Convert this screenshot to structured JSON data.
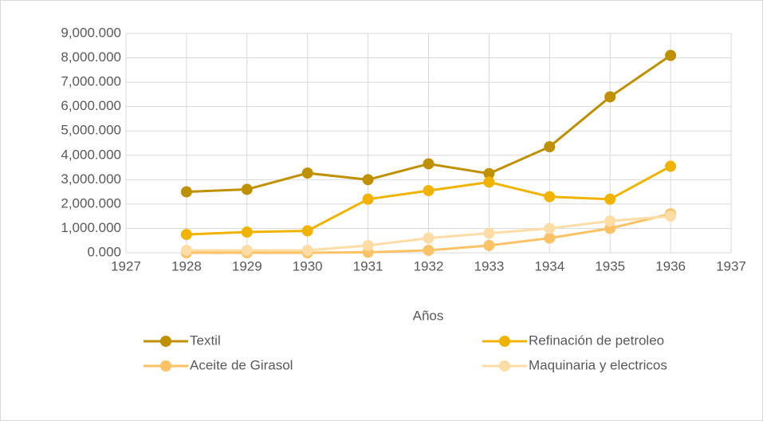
{
  "chart_data": {
    "type": "line",
    "x_label": "Años",
    "x": [
      1928,
      1929,
      1930,
      1931,
      1932,
      1933,
      1934,
      1935,
      1936
    ],
    "xlim": [
      1927,
      1937
    ],
    "xticks": [
      1927,
      1928,
      1929,
      1930,
      1931,
      1932,
      1933,
      1934,
      1935,
      1936,
      1937
    ],
    "ylim": [
      0,
      9000
    ],
    "yticks": [
      {
        "value": 0,
        "label": "0.000"
      },
      {
        "value": 1000,
        "label": "1,000.000"
      },
      {
        "value": 2000,
        "label": "2,000.000"
      },
      {
        "value": 3000,
        "label": "3,000.000"
      },
      {
        "value": 4000,
        "label": "4,000.000"
      },
      {
        "value": 5000,
        "label": "5,000.000"
      },
      {
        "value": 6000,
        "label": "6,000.000"
      },
      {
        "value": 7000,
        "label": "7,000.000"
      },
      {
        "value": 8000,
        "label": "8,000.000"
      },
      {
        "value": 9000,
        "label": "9,000.000"
      }
    ],
    "grid": true,
    "legend": "bottom",
    "series": [
      {
        "name": "Textil",
        "color": "#bf9000",
        "values": [
          2500,
          2600,
          3270,
          3000,
          3650,
          3250,
          4350,
          6400,
          8100
        ]
      },
      {
        "name": "Refinación de petroleo",
        "color": "#f0b400",
        "values": [
          750,
          850,
          900,
          2200,
          2550,
          2900,
          2300,
          2200,
          3550
        ]
      },
      {
        "name": "Aceite de Girasol",
        "color": "#fbc266",
        "values": [
          0,
          0,
          0,
          20,
          100,
          300,
          600,
          1000,
          1600
        ]
      },
      {
        "name": "Maquinaria y electricos",
        "color": "#fddca6",
        "values": [
          100,
          100,
          100,
          300,
          600,
          800,
          1000,
          1300,
          1500
        ]
      }
    ]
  }
}
